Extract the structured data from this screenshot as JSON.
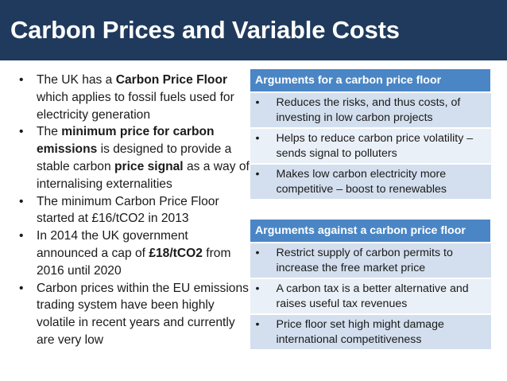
{
  "title": "Carbon Prices and Variable Costs",
  "bullets": [
    {
      "parts": [
        {
          "t": "The UK has a ",
          "b": false
        },
        {
          "t": "Carbon Price Floor",
          "b": true
        },
        {
          "t": " which applies to fossil fuels used for electricity generation",
          "b": false
        }
      ]
    },
    {
      "parts": [
        {
          "t": "The ",
          "b": false
        },
        {
          "t": "minimum price for carbon emissions",
          "b": true
        },
        {
          "t": " is designed to provide a stable carbon ",
          "b": false
        },
        {
          "t": "price signal",
          "b": true
        },
        {
          "t": " as a way of internalising externalities",
          "b": false
        }
      ]
    },
    {
      "parts": [
        {
          "t": "The minimum Carbon Price Floor started at £16/tCO2 in 2013",
          "b": false
        }
      ]
    },
    {
      "parts": [
        {
          "t": "In 2014 the UK government announced a cap of ",
          "b": false
        },
        {
          "t": "£18/tCO2",
          "b": true
        },
        {
          "t": " from 2016 until 2020",
          "b": false
        }
      ]
    },
    {
      "parts": [
        {
          "t": "Carbon prices within the EU emissions trading system have been highly volatile in recent years and currently are very low",
          "b": false
        }
      ]
    }
  ],
  "bullet_glyph": "•",
  "for_table": {
    "header": "Arguments for a carbon price floor",
    "rows": [
      "Reduces the risks, and thus costs, of investing in low carbon projects",
      "Helps to reduce carbon price volatility – sends signal to polluters",
      "Makes low carbon electricity more competitive – boost to renewables"
    ]
  },
  "against_table": {
    "header": "Arguments against a carbon price floor",
    "rows": [
      "Restrict supply of carbon permits to increase the free market price",
      "A carbon tax is a better alternative and raises useful tax revenues",
      "Price floor set high might damage international competitiveness"
    ]
  },
  "colors": {
    "title_bar": "#1f3a5c",
    "table_header": "#4a86c5",
    "row_dark": "#d3dfee",
    "row_light": "#eaf0f7"
  }
}
